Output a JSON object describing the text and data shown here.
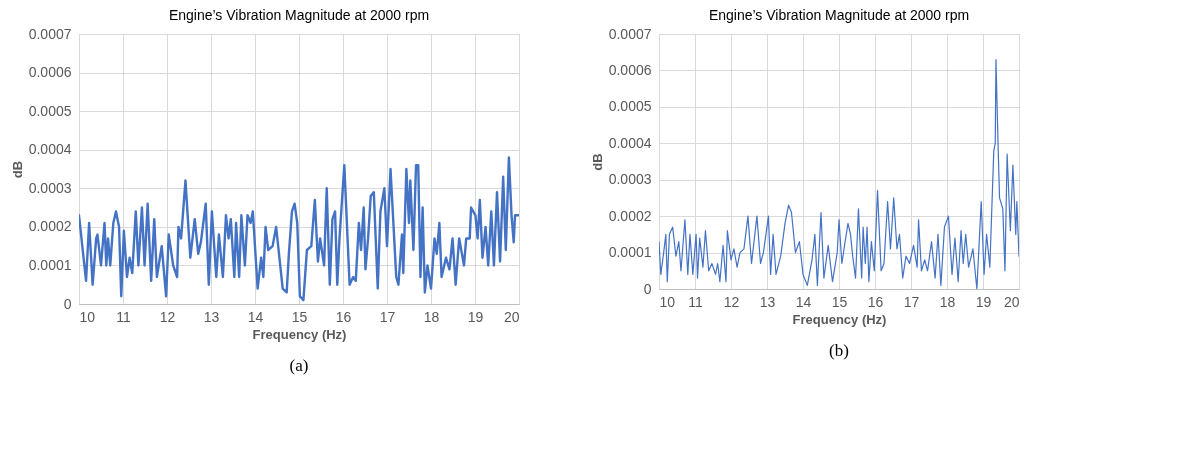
{
  "chart_data": [
    {
      "type": "line",
      "title": "Engine’s Vibration Magnitude at 2000 rpm",
      "xlabel": "Frequency (Hz)",
      "ylabel": "dB",
      "annotations": [
        "(a)"
      ],
      "xlim": [
        10,
        20
      ],
      "xticks": [
        10,
        11,
        12,
        13,
        14,
        15,
        16,
        17,
        18,
        19,
        20
      ],
      "ylim": [
        0,
        0.0007
      ],
      "yticks": [
        0,
        0.0001,
        0.0002,
        0.0003,
        0.0004,
        0.0005,
        0.0006,
        0.0007
      ],
      "grid": true,
      "x": [
        10.0,
        10.16,
        10.23,
        10.31,
        10.39,
        10.42,
        10.5,
        10.58,
        10.62,
        10.66,
        10.71,
        10.78,
        10.84,
        10.91,
        10.96,
        11.02,
        11.09,
        11.15,
        11.21,
        11.29,
        11.35,
        11.43,
        11.49,
        11.56,
        11.64,
        11.71,
        11.77,
        11.88,
        11.98,
        12.04,
        12.14,
        12.23,
        12.26,
        12.32,
        12.42,
        12.53,
        12.63,
        12.71,
        12.77,
        12.88,
        12.95,
        13.02,
        13.12,
        13.18,
        13.27,
        13.34,
        13.4,
        13.45,
        13.53,
        13.57,
        13.64,
        13.69,
        13.77,
        13.83,
        13.9,
        13.95,
        14.06,
        14.14,
        14.19,
        14.24,
        14.3,
        14.4,
        14.48,
        14.63,
        14.72,
        14.77,
        14.84,
        14.9,
        14.96,
        15.02,
        15.1,
        15.18,
        15.28,
        15.36,
        15.43,
        15.48,
        15.57,
        15.63,
        15.7,
        15.76,
        15.82,
        15.87,
        15.92,
        16.03,
        16.15,
        16.23,
        16.29,
        16.36,
        16.41,
        16.47,
        16.51,
        16.57,
        16.63,
        16.7,
        16.79,
        16.85,
        16.94,
        17.0,
        17.08,
        17.21,
        17.26,
        17.34,
        17.37,
        17.44,
        17.5,
        17.53,
        17.6,
        17.66,
        17.71,
        17.76,
        17.81,
        17.86,
        17.92,
        18.0,
        18.08,
        18.13,
        18.19,
        18.24,
        18.34,
        18.42,
        18.49,
        18.56,
        18.64,
        18.75,
        18.8,
        18.88,
        18.91,
        19.01,
        19.06,
        19.11,
        19.17,
        19.24,
        19.3,
        19.37,
        19.43,
        19.5,
        19.57,
        19.64,
        19.7,
        19.77,
        19.83,
        19.88,
        19.91,
        20.0
      ],
      "series": [
        {
          "color": "#4472c4",
          "values": [
            0.00023,
            6e-05,
            0.00021,
            5e-05,
            0.00017,
            0.00018,
            0.0001,
            0.00021,
            0.0001,
            0.00017,
            0.0001,
            0.00021,
            0.00024,
            0.0002,
            2e-05,
            0.00019,
            7e-05,
            0.00012,
            8e-05,
            0.00024,
            0.0001,
            0.00025,
            0.0001,
            0.00026,
            6e-05,
            0.00022,
            7e-05,
            0.00015,
            2e-05,
            0.00018,
            0.0001,
            7e-05,
            0.0002,
            0.00017,
            0.00032,
            0.00012,
            0.00022,
            0.00013,
            0.00016,
            0.00026,
            5e-05,
            0.00024,
            7e-05,
            0.00018,
            7e-05,
            0.00023,
            0.00017,
            0.00022,
            7e-05,
            0.00021,
            7e-05,
            0.00023,
            0.0001,
            0.00023,
            0.00021,
            0.00024,
            4e-05,
            0.00012,
            7e-05,
            0.0002,
            0.00014,
            0.00015,
            0.0002,
            4e-05,
            3e-05,
            0.00013,
            0.00024,
            0.00026,
            0.00021,
            2e-05,
            1e-05,
            0.00014,
            0.00015,
            0.00027,
            0.00011,
            0.00017,
            0.0001,
            0.0003,
            5e-05,
            0.00022,
            0.00024,
            5e-05,
            0.00017,
            0.00036,
            5e-05,
            7e-05,
            6e-05,
            0.00021,
            0.00014,
            0.00025,
            9e-05,
            0.00017,
            0.00028,
            0.00029,
            4e-05,
            0.00024,
            0.0003,
            0.00015,
            0.00035,
            7e-05,
            5e-05,
            0.00018,
            8e-05,
            0.00035,
            0.00021,
            0.00032,
            0.00014,
            0.00036,
            0.00036,
            7e-05,
            0.00025,
            3e-05,
            0.0001,
            4e-05,
            0.00017,
            0.00013,
            0.00021,
            7e-05,
            0.00012,
            9e-05,
            0.00017,
            5e-05,
            0.00017,
            0.0001,
            0.00017,
            0.00017,
            0.00025,
            0.00023,
            0.00017,
            0.00027,
            0.00012,
            0.0002,
            0.0001,
            0.00024,
            0.0001,
            0.00029,
            0.00011,
            0.00033,
            0.00014,
            0.00038,
            0.00023,
            0.00016,
            0.00023,
            0.00023
          ]
        }
      ]
    },
    {
      "type": "line",
      "title": "Engine’s Vibration Magnitude at 2000 rpm",
      "xlabel": "Frequency (Hz)",
      "ylabel": "dB",
      "annotations": [
        "(b)"
      ],
      "xlim": [
        10,
        20
      ],
      "xticks": [
        10,
        11,
        12,
        13,
        14,
        15,
        16,
        17,
        18,
        19,
        20
      ],
      "ylim": [
        0,
        0.0007
      ],
      "yticks": [
        0,
        0.0001,
        0.0002,
        0.0003,
        0.0004,
        0.0005,
        0.0006,
        0.0007
      ],
      "grid": true,
      "x": [
        10.0,
        10.05,
        10.13,
        10.19,
        10.23,
        10.29,
        10.38,
        10.47,
        10.55,
        10.61,
        10.72,
        10.8,
        10.86,
        10.94,
        11.03,
        11.07,
        11.13,
        11.22,
        11.29,
        11.38,
        11.47,
        11.57,
        11.63,
        11.69,
        11.78,
        11.86,
        11.9,
        12.0,
        12.08,
        12.17,
        12.25,
        12.36,
        12.47,
        12.57,
        12.72,
        12.82,
        12.9,
        13.04,
        13.1,
        13.17,
        13.25,
        13.38,
        13.5,
        13.6,
        13.68,
        13.79,
        13.9,
        14.0,
        14.12,
        14.25,
        14.33,
        14.4,
        14.5,
        14.58,
        14.7,
        14.82,
        14.95,
        15.0,
        15.08,
        15.17,
        15.25,
        15.32,
        15.38,
        15.46,
        15.54,
        15.63,
        15.67,
        15.73,
        15.78,
        15.83,
        15.9,
        15.98,
        16.07,
        16.17,
        16.25,
        16.35,
        16.43,
        16.52,
        16.61,
        16.68,
        16.77,
        16.86,
        16.96,
        17.07,
        17.17,
        17.21,
        17.29,
        17.38,
        17.46,
        17.57,
        17.67,
        17.75,
        17.83,
        17.93,
        18.04,
        18.14,
        18.22,
        18.31,
        18.39,
        18.45,
        18.52,
        18.6,
        18.72,
        18.83,
        18.95,
        19.03,
        19.1,
        19.19,
        19.3,
        19.34,
        19.36,
        19.42,
        19.46,
        19.55,
        19.61,
        19.67,
        19.76,
        19.83,
        19.91,
        19.94,
        20.0
      ],
      "series": [
        {
          "color": "#4472c4",
          "values": [
            0.00013,
            4e-05,
            0.0001,
            0.00015,
            2e-05,
            0.00015,
            0.00017,
            9e-05,
            0.00013,
            5e-05,
            0.00019,
            4e-05,
            0.00015,
            4e-05,
            0.00015,
            3e-05,
            0.00014,
            6e-05,
            0.00016,
            5e-05,
            7e-05,
            4e-05,
            7e-05,
            2e-05,
            0.00012,
            2e-05,
            0.00016,
            8e-05,
            0.00011,
            6e-05,
            0.0001,
            0.00011,
            0.0002,
            7e-05,
            0.0002,
            7e-05,
            0.0001,
            0.0002,
            4e-05,
            0.00015,
            4e-05,
            9e-05,
            0.00018,
            0.00023,
            0.00021,
            0.0001,
            0.00013,
            4e-05,
            1e-05,
            8e-05,
            0.00015,
            1e-05,
            0.00021,
            3e-05,
            0.00012,
            2e-05,
            0.0001,
            0.00019,
            7e-05,
            0.00013,
            0.00018,
            0.00015,
            9e-05,
            3e-05,
            0.00022,
            3e-05,
            0.00017,
            7e-05,
            0.00017,
            2e-05,
            0.00013,
            5e-05,
            0.00027,
            5e-05,
            7e-05,
            0.00024,
            0.00011,
            0.00025,
            0.00011,
            0.00015,
            3e-05,
            9e-05,
            7e-05,
            0.00012,
            6e-05,
            0.00019,
            5e-05,
            8e-05,
            5e-05,
            0.00013,
            3e-05,
            0.00015,
            1e-05,
            0.00017,
            0.0002,
            4e-05,
            0.00014,
            2e-05,
            0.00016,
            7e-05,
            0.00015,
            6e-05,
            0.00011,
            0.0,
            0.00024,
            4e-05,
            0.00015,
            6e-05,
            0.00038,
            0.0004,
            0.00063,
            0.00039,
            0.00025,
            0.00022,
            5e-05,
            0.00037,
            0.00016,
            0.00034,
            0.00015,
            0.00024,
            9e-05
          ]
        }
      ]
    }
  ]
}
